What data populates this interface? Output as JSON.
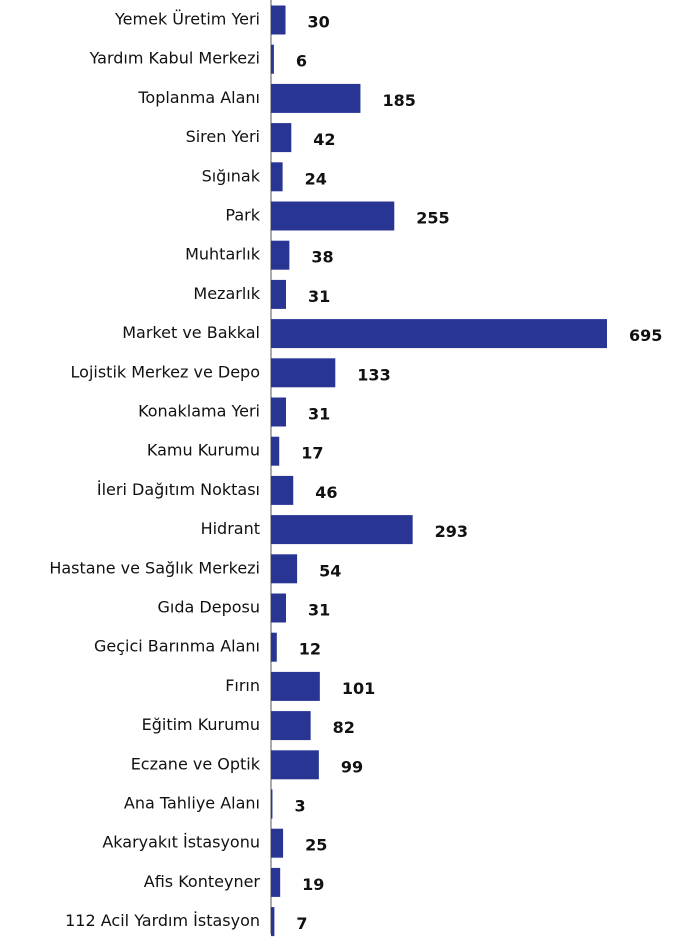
{
  "chart_data": {
    "type": "bar",
    "orientation": "horizontal",
    "color": "#283593",
    "categories": [
      "Yemek Üretim Yeri",
      "Yardım Kabul Merkezi",
      "Toplanma Alanı",
      "Siren Yeri",
      "Sığınak",
      "Park",
      "Muhtarlık",
      "Mezarlık",
      "Market ve Bakkal",
      "Lojistik Merkez ve Depo",
      "Konaklama Yeri",
      "Kamu Kurumu",
      "İleri Dağıtım Noktası",
      "Hidrant",
      "Hastane ve Sağlık Merkezi",
      "Gıda Deposu",
      "Geçici Barınma Alanı",
      "Fırın",
      "Eğitim Kurumu",
      "Eczane ve Optik",
      "Ana Tahliye Alanı",
      "Akaryakıt İstasyonu",
      "Afis Konteyner",
      "112 Acil Yardım İstasyon"
    ],
    "values": [
      30,
      6,
      185,
      42,
      24,
      255,
      38,
      31,
      695,
      133,
      31,
      17,
      46,
      293,
      54,
      31,
      12,
      101,
      82,
      99,
      3,
      25,
      19,
      7
    ]
  }
}
